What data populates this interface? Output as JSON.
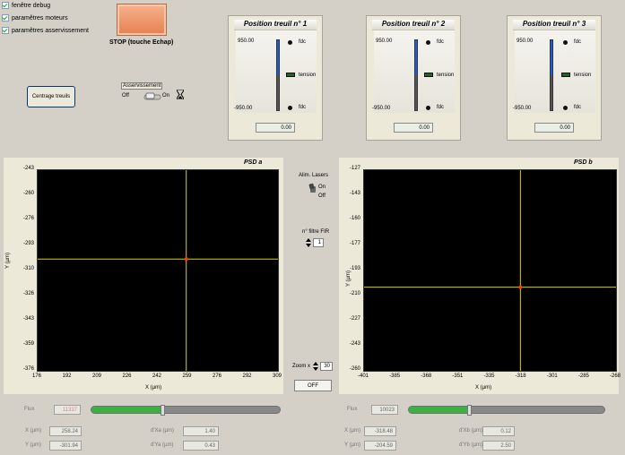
{
  "checkboxes": [
    {
      "label": "fenêtre debug",
      "checked": true
    },
    {
      "label": "paramêtres moteurs",
      "checked": true
    },
    {
      "label": "paramêtres asservissement",
      "checked": true
    }
  ],
  "stop_label": "STOP (touche Echap)",
  "centrage_label": "Centrage treuils",
  "asserv": {
    "title": "Asservissement",
    "off": "Off",
    "on": "On"
  },
  "treuils": [
    {
      "title": "Position treuil n° 1",
      "max": "950.00",
      "min": "-950.00",
      "fdc": "fdc",
      "tension": "tension",
      "value": "0.00",
      "fill": 0.5
    },
    {
      "title": "Position treuil n° 2",
      "max": "950.00",
      "min": "-950.00",
      "fdc": "fdc",
      "tension": "tension",
      "value": "0.00",
      "fill": 0.5
    },
    {
      "title": "Position treuil n° 3",
      "max": "950.00",
      "min": "-950.00",
      "fdc": "fdc",
      "tension": "tension",
      "value": "0.00",
      "fill": 0.5
    }
  ],
  "psd_a": {
    "title": "PSD a",
    "ylabel": "Y (µm)",
    "xlabel": "X (µm)",
    "yticks": [
      "-243",
      "-260",
      "-276",
      "-293",
      "-310",
      "-326",
      "-343",
      "-359",
      "-376"
    ],
    "xticks": [
      "176",
      "192",
      "209",
      "226",
      "242",
      "259",
      "276",
      "292",
      "309"
    ],
    "flux_label": "Flux",
    "flux": "11337",
    "flux_level": 0.38,
    "x_label": "X (µm)",
    "x": "258.24",
    "y_label": "Y (µm)",
    "y": "-301.94",
    "dx_label": "d'Xa (µm)",
    "dx": "1.40",
    "dy_label": "d'Ya (µm)",
    "dy": "0.43"
  },
  "psd_b": {
    "title": "PSD b",
    "ylabel": "Y (µm)",
    "xlabel": "X (µm)",
    "yticks": [
      "-127",
      "-143",
      "-160",
      "-177",
      "-193",
      "-210",
      "-227",
      "-243",
      "-260"
    ],
    "xticks": [
      "-401",
      "-385",
      "-368",
      "-351",
      "-335",
      "-318",
      "-301",
      "-285",
      "-268"
    ],
    "flux_label": "Flux",
    "flux": "10023",
    "flux_level": 0.31,
    "x_label": "X (µm)",
    "x": "-318.48",
    "y_label": "Y (µm)",
    "y": "-204.59",
    "dx_label": "d'Xb (µm)",
    "dx": "0.12",
    "dy_label": "d'Yb (µm)",
    "dy": "2.50"
  },
  "chart_data": [
    {
      "type": "scatter",
      "title": "PSD a",
      "xlabel": "X (µm)",
      "ylabel": "Y (µm)",
      "xlim": [
        176,
        309
      ],
      "ylim": [
        -376,
        -243
      ],
      "series": [
        {
          "x": [
            258.24
          ],
          "y": [
            -301.94
          ]
        }
      ]
    },
    {
      "type": "scatter",
      "title": "PSD b",
      "xlabel": "X (µm)",
      "ylabel": "Y (µm)",
      "xlim": [
        -401,
        -268
      ],
      "ylim": [
        -260,
        -127
      ],
      "series": [
        {
          "x": [
            -318.48
          ],
          "y": [
            -204.59
          ]
        }
      ]
    }
  ],
  "lasers": {
    "title": "Alim. Lasers",
    "on": "On",
    "off": "Off"
  },
  "fir": {
    "title": "n° filtre FIR",
    "value": "1"
  },
  "zoom": {
    "label": "Zoom x",
    "value": "30"
  },
  "off_button": "OFF",
  "colors": {
    "crosshair": "#d6d01e",
    "marker": "#ff3a00",
    "flux_fill": "#3cb043",
    "slider_fill": "#1e5dde"
  }
}
